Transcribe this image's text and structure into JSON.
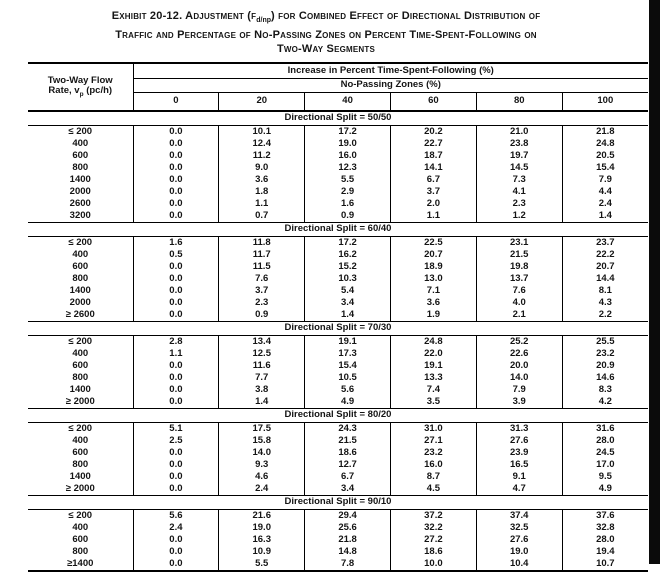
{
  "title": {
    "line1_pre": "Exhibit 20-12.  Adjustment (f",
    "line1_sub": "d/np",
    "line1_post": ") for Combined Effect of Directional Distribution of",
    "line2": "Traffic and Percentage of No-Passing Zones on Percent Time-Spent-Following on",
    "line3": "Two-Way Segments"
  },
  "table": {
    "header_increase": "Increase in Percent Time-Spent-Following (%)",
    "header_no_passing": "No-Passing Zones (%)",
    "row_header": {
      "line1": "Two-Way Flow",
      "line2_pre": "Rate, v",
      "line2_sub": "p",
      "line2_post": " (pc/h)"
    },
    "columns": [
      "0",
      "20",
      "40",
      "60",
      "80",
      "100"
    ],
    "sections": [
      {
        "label": "Directional Split = 50/50",
        "rows": [
          {
            "flow": "≤ 200",
            "values": [
              "0.0",
              "10.1",
              "17.2",
              "20.2",
              "21.0",
              "21.8"
            ]
          },
          {
            "flow": "400",
            "values": [
              "0.0",
              "12.4",
              "19.0",
              "22.7",
              "23.8",
              "24.8"
            ]
          },
          {
            "flow": "600",
            "values": [
              "0.0",
              "11.2",
              "16.0",
              "18.7",
              "19.7",
              "20.5"
            ]
          },
          {
            "flow": "800",
            "values": [
              "0.0",
              "9.0",
              "12.3",
              "14.1",
              "14.5",
              "15.4"
            ]
          },
          {
            "flow": "1400",
            "values": [
              "0.0",
              "3.6",
              "5.5",
              "6.7",
              "7.3",
              "7.9"
            ]
          },
          {
            "flow": "2000",
            "values": [
              "0.0",
              "1.8",
              "2.9",
              "3.7",
              "4.1",
              "4.4"
            ]
          },
          {
            "flow": "2600",
            "values": [
              "0.0",
              "1.1",
              "1.6",
              "2.0",
              "2.3",
              "2.4"
            ]
          },
          {
            "flow": "3200",
            "values": [
              "0.0",
              "0.7",
              "0.9",
              "1.1",
              "1.2",
              "1.4"
            ]
          }
        ]
      },
      {
        "label": "Directional Split = 60/40",
        "rows": [
          {
            "flow": "≤ 200",
            "values": [
              "1.6",
              "11.8",
              "17.2",
              "22.5",
              "23.1",
              "23.7"
            ]
          },
          {
            "flow": "400",
            "values": [
              "0.5",
              "11.7",
              "16.2",
              "20.7",
              "21.5",
              "22.2"
            ]
          },
          {
            "flow": "600",
            "values": [
              "0.0",
              "11.5",
              "15.2",
              "18.9",
              "19.8",
              "20.7"
            ]
          },
          {
            "flow": "800",
            "values": [
              "0.0",
              "7.6",
              "10.3",
              "13.0",
              "13.7",
              "14.4"
            ]
          },
          {
            "flow": "1400",
            "values": [
              "0.0",
              "3.7",
              "5.4",
              "7.1",
              "7.6",
              "8.1"
            ]
          },
          {
            "flow": "2000",
            "values": [
              "0.0",
              "2.3",
              "3.4",
              "3.6",
              "4.0",
              "4.3"
            ]
          },
          {
            "flow": "≥ 2600",
            "values": [
              "0.0",
              "0.9",
              "1.4",
              "1.9",
              "2.1",
              "2.2"
            ]
          }
        ]
      },
      {
        "label": "Directional Split = 70/30",
        "rows": [
          {
            "flow": "≤ 200",
            "values": [
              "2.8",
              "13.4",
              "19.1",
              "24.8",
              "25.2",
              "25.5"
            ]
          },
          {
            "flow": "400",
            "values": [
              "1.1",
              "12.5",
              "17.3",
              "22.0",
              "22.6",
              "23.2"
            ]
          },
          {
            "flow": "600",
            "values": [
              "0.0",
              "11.6",
              "15.4",
              "19.1",
              "20.0",
              "20.9"
            ]
          },
          {
            "flow": "800",
            "values": [
              "0.0",
              "7.7",
              "10.5",
              "13.3",
              "14.0",
              "14.6"
            ]
          },
          {
            "flow": "1400",
            "values": [
              "0.0",
              "3.8",
              "5.6",
              "7.4",
              "7.9",
              "8.3"
            ]
          },
          {
            "flow": "≥ 2000",
            "values": [
              "0.0",
              "1.4",
              "4.9",
              "3.5",
              "3.9",
              "4.2"
            ]
          }
        ]
      },
      {
        "label": "Directional Split = 80/20",
        "rows": [
          {
            "flow": "≤ 200",
            "values": [
              "5.1",
              "17.5",
              "24.3",
              "31.0",
              "31.3",
              "31.6"
            ]
          },
          {
            "flow": "400",
            "values": [
              "2.5",
              "15.8",
              "21.5",
              "27.1",
              "27.6",
              "28.0"
            ]
          },
          {
            "flow": "600",
            "values": [
              "0.0",
              "14.0",
              "18.6",
              "23.2",
              "23.9",
              "24.5"
            ]
          },
          {
            "flow": "800",
            "values": [
              "0.0",
              "9.3",
              "12.7",
              "16.0",
              "16.5",
              "17.0"
            ]
          },
          {
            "flow": "1400",
            "values": [
              "0.0",
              "4.6",
              "6.7",
              "8.7",
              "9.1",
              "9.5"
            ]
          },
          {
            "flow": "≥ 2000",
            "values": [
              "0.0",
              "2.4",
              "3.4",
              "4.5",
              "4.7",
              "4.9"
            ]
          }
        ]
      },
      {
        "label": "Directional Split = 90/10",
        "rows": [
          {
            "flow": "≤ 200",
            "values": [
              "5.6",
              "21.6",
              "29.4",
              "37.2",
              "37.4",
              "37.6"
            ]
          },
          {
            "flow": "400",
            "values": [
              "2.4",
              "19.0",
              "25.6",
              "32.2",
              "32.5",
              "32.8"
            ]
          },
          {
            "flow": "600",
            "values": [
              "0.0",
              "16.3",
              "21.8",
              "27.2",
              "27.6",
              "28.0"
            ]
          },
          {
            "flow": "800",
            "values": [
              "0.0",
              "10.9",
              "14.8",
              "18.6",
              "19.0",
              "19.4"
            ]
          },
          {
            "flow": "≥1400",
            "values": [
              "0.0",
              "5.5",
              "7.8",
              "10.0",
              "10.4",
              "10.7"
            ]
          }
        ]
      }
    ]
  }
}
